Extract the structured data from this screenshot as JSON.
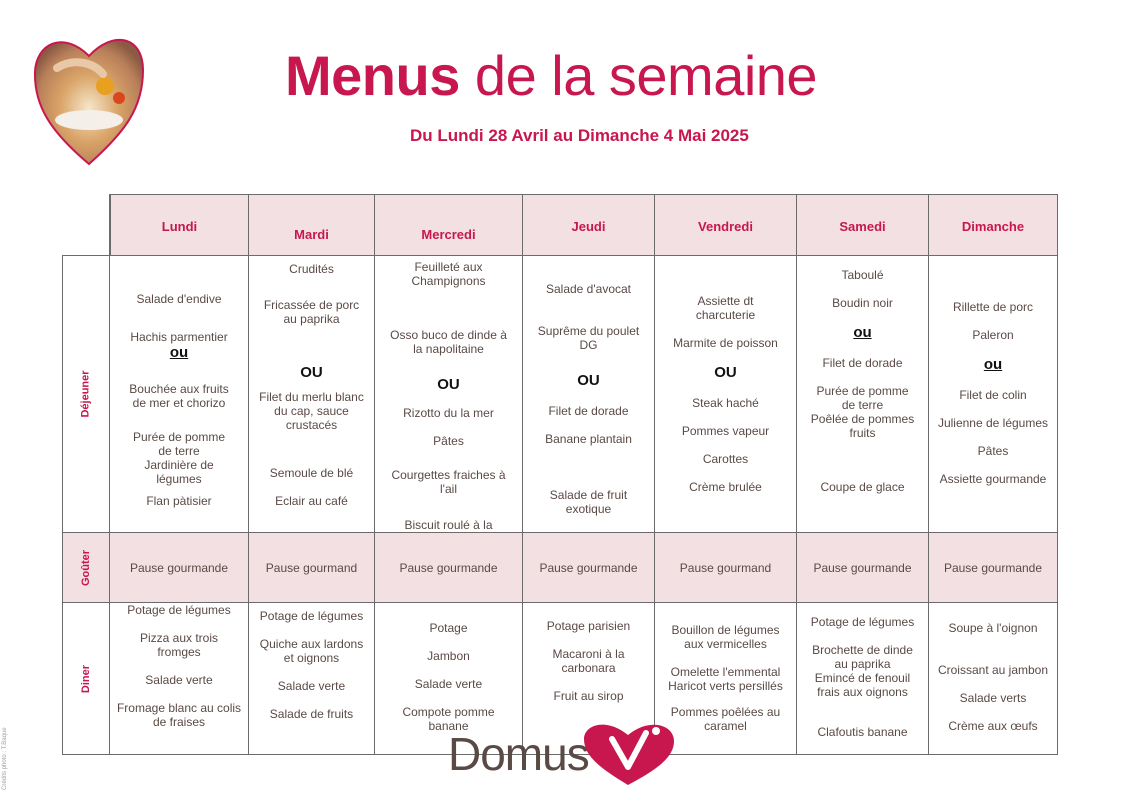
{
  "header": {
    "title_bold": "Menus",
    "title_rest": " de la semaine",
    "subtitle": "Du Lundi 28 Avril au Dimanche 4 Mai 2025"
  },
  "row_labels": {
    "dejeuner": "Déjeuner",
    "gouter": "Goûter",
    "diner": "Diner"
  },
  "days": [
    "Lundi",
    "Mardi",
    "Mercredi",
    "Jeudi",
    "Vendredi",
    "Samedi",
    "Dimanche"
  ],
  "dejeuner": [
    [
      "Salade d'endive",
      "Hachis parmentier",
      "ou",
      "Bouchée aux fruits\nde mer et chorizo",
      "Purée de pomme\nde terre\nJardinière de\nlégumes",
      "Flan pàtisier"
    ],
    [
      "Crudités",
      "Fricassée de porc\nau paprika",
      "OU",
      "Filet du merlu blanc\ndu cap, sauce\ncrustacés",
      "Semoule de blé",
      "Eclair au café"
    ],
    [
      "Feuilleté aux\nChampignons",
      "Osso buco de dinde à\nla napolitaine",
      "OU",
      "Rizotto du la mer",
      "Pâtes",
      "Courgettes fraiches à\nl'ail",
      "Biscuit roulé à la\nconfiture de fraise"
    ],
    [
      "Salade d'avocat",
      "Suprême du poulet\nDG",
      "OU",
      "Filet de dorade",
      "Banane plantain",
      "Salade de fruit\nexotique"
    ],
    [
      "Assiette dt\ncharcuterie",
      "Marmite de poisson",
      "OU",
      "Steak haché",
      "Pommes vapeur",
      "Carottes",
      "Crème brulée"
    ],
    [
      "Taboulé",
      "Boudin noir",
      "ou",
      "Filet de dorade",
      "Purée de pomme\nde terre\nPoêlée de pommes\nfruits",
      "Coupe de glace"
    ],
    [
      "Rillette de porc",
      "Paleron",
      "ou",
      "Filet de colin",
      "Julienne de légumes",
      "Pâtes",
      "Assiette gourmande"
    ]
  ],
  "gouter": [
    "Pause gourmande",
    "Pause gourmand",
    "Pause gourmande",
    "Pause gourmande",
    "Pause gourmand",
    "Pause gourmande",
    "Pause gourmande"
  ],
  "diner": [
    [
      "Potage de légumes",
      "Pizza aux trois\nfromges",
      "Salade verte",
      "Fromage blanc au colis\nde fraises"
    ],
    [
      "Potage de légumes",
      "Quiche aux lardons\net oignons",
      "Salade verte",
      "Salade de fruits"
    ],
    [
      "Potage",
      "Jambon",
      "Salade verte",
      "Compote pomme\nbanane"
    ],
    [
      "Potage parisien",
      "Macaroni à la\ncarbonara",
      "Fruit au sirop"
    ],
    [
      "Bouillon de légumes\naux vermicelles",
      "Omelette l'emmental\nHaricot verts persillés",
      "Pommes poêlées au\ncaramel"
    ],
    [
      "Potage de légumes",
      "Brochette de dinde\nau paprika\nEmincé de fenouil\nfrais aux oignons",
      "Clafoutis banane"
    ],
    [
      "Soupe à l'oignon",
      "Croissant au jambon",
      "Salade verts",
      "Crème aux œufs"
    ]
  ],
  "brand": {
    "name": "DomusVi",
    "text": "Domus"
  },
  "photo_credit": "Crédits photo : T.Baque",
  "colors": {
    "accent": "#c8174e",
    "header_fill": "#f2e0e2",
    "text": "#5a4a45"
  }
}
